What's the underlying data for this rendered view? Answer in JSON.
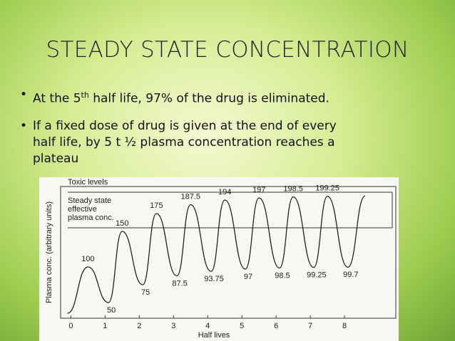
{
  "slide": {
    "title": "STEADY STATE CONCENTRATION",
    "bullets": [
      {
        "parts": [
          "At the 5",
          "th",
          " half life, 97% of the drug is eliminated."
        ]
      },
      {
        "lines": [
          "If a fixed dose of drug is given at the end of every",
          "half life, by 5 t ½  plasma concentration reaches a",
          "plateau"
        ]
      }
    ]
  },
  "chart_data": {
    "type": "line",
    "x_label": "Half lives",
    "y_label": "Plasma conc. (arbitrary units)",
    "x": [
      -0.1,
      0.5,
      1.1,
      1.5,
      2.1,
      2.5,
      3.1,
      3.5,
      4.1,
      4.5,
      5.1,
      5.5,
      6.1,
      6.5,
      7.1,
      7.5,
      8.1,
      8.6
    ],
    "values": [
      35,
      100,
      50,
      150,
      75,
      175,
      87.5,
      187.5,
      93.75,
      194,
      97,
      197,
      98.5,
      198.5,
      99.25,
      199.25,
      99.7,
      199.7
    ],
    "color": "#222222",
    "xlim": [
      -0.3,
      9.5
    ],
    "xticks": [
      0,
      1,
      2,
      3,
      4,
      5,
      6,
      7,
      8
    ],
    "ylim": [
      28,
      213
    ],
    "bands": [
      {
        "label_lines": [
          "Toxic levels"
        ],
        "value": 205
      },
      {
        "label_lines": [
          "Steady state",
          "effective",
          "plasma conc."
        ],
        "value": 155
      }
    ]
  }
}
